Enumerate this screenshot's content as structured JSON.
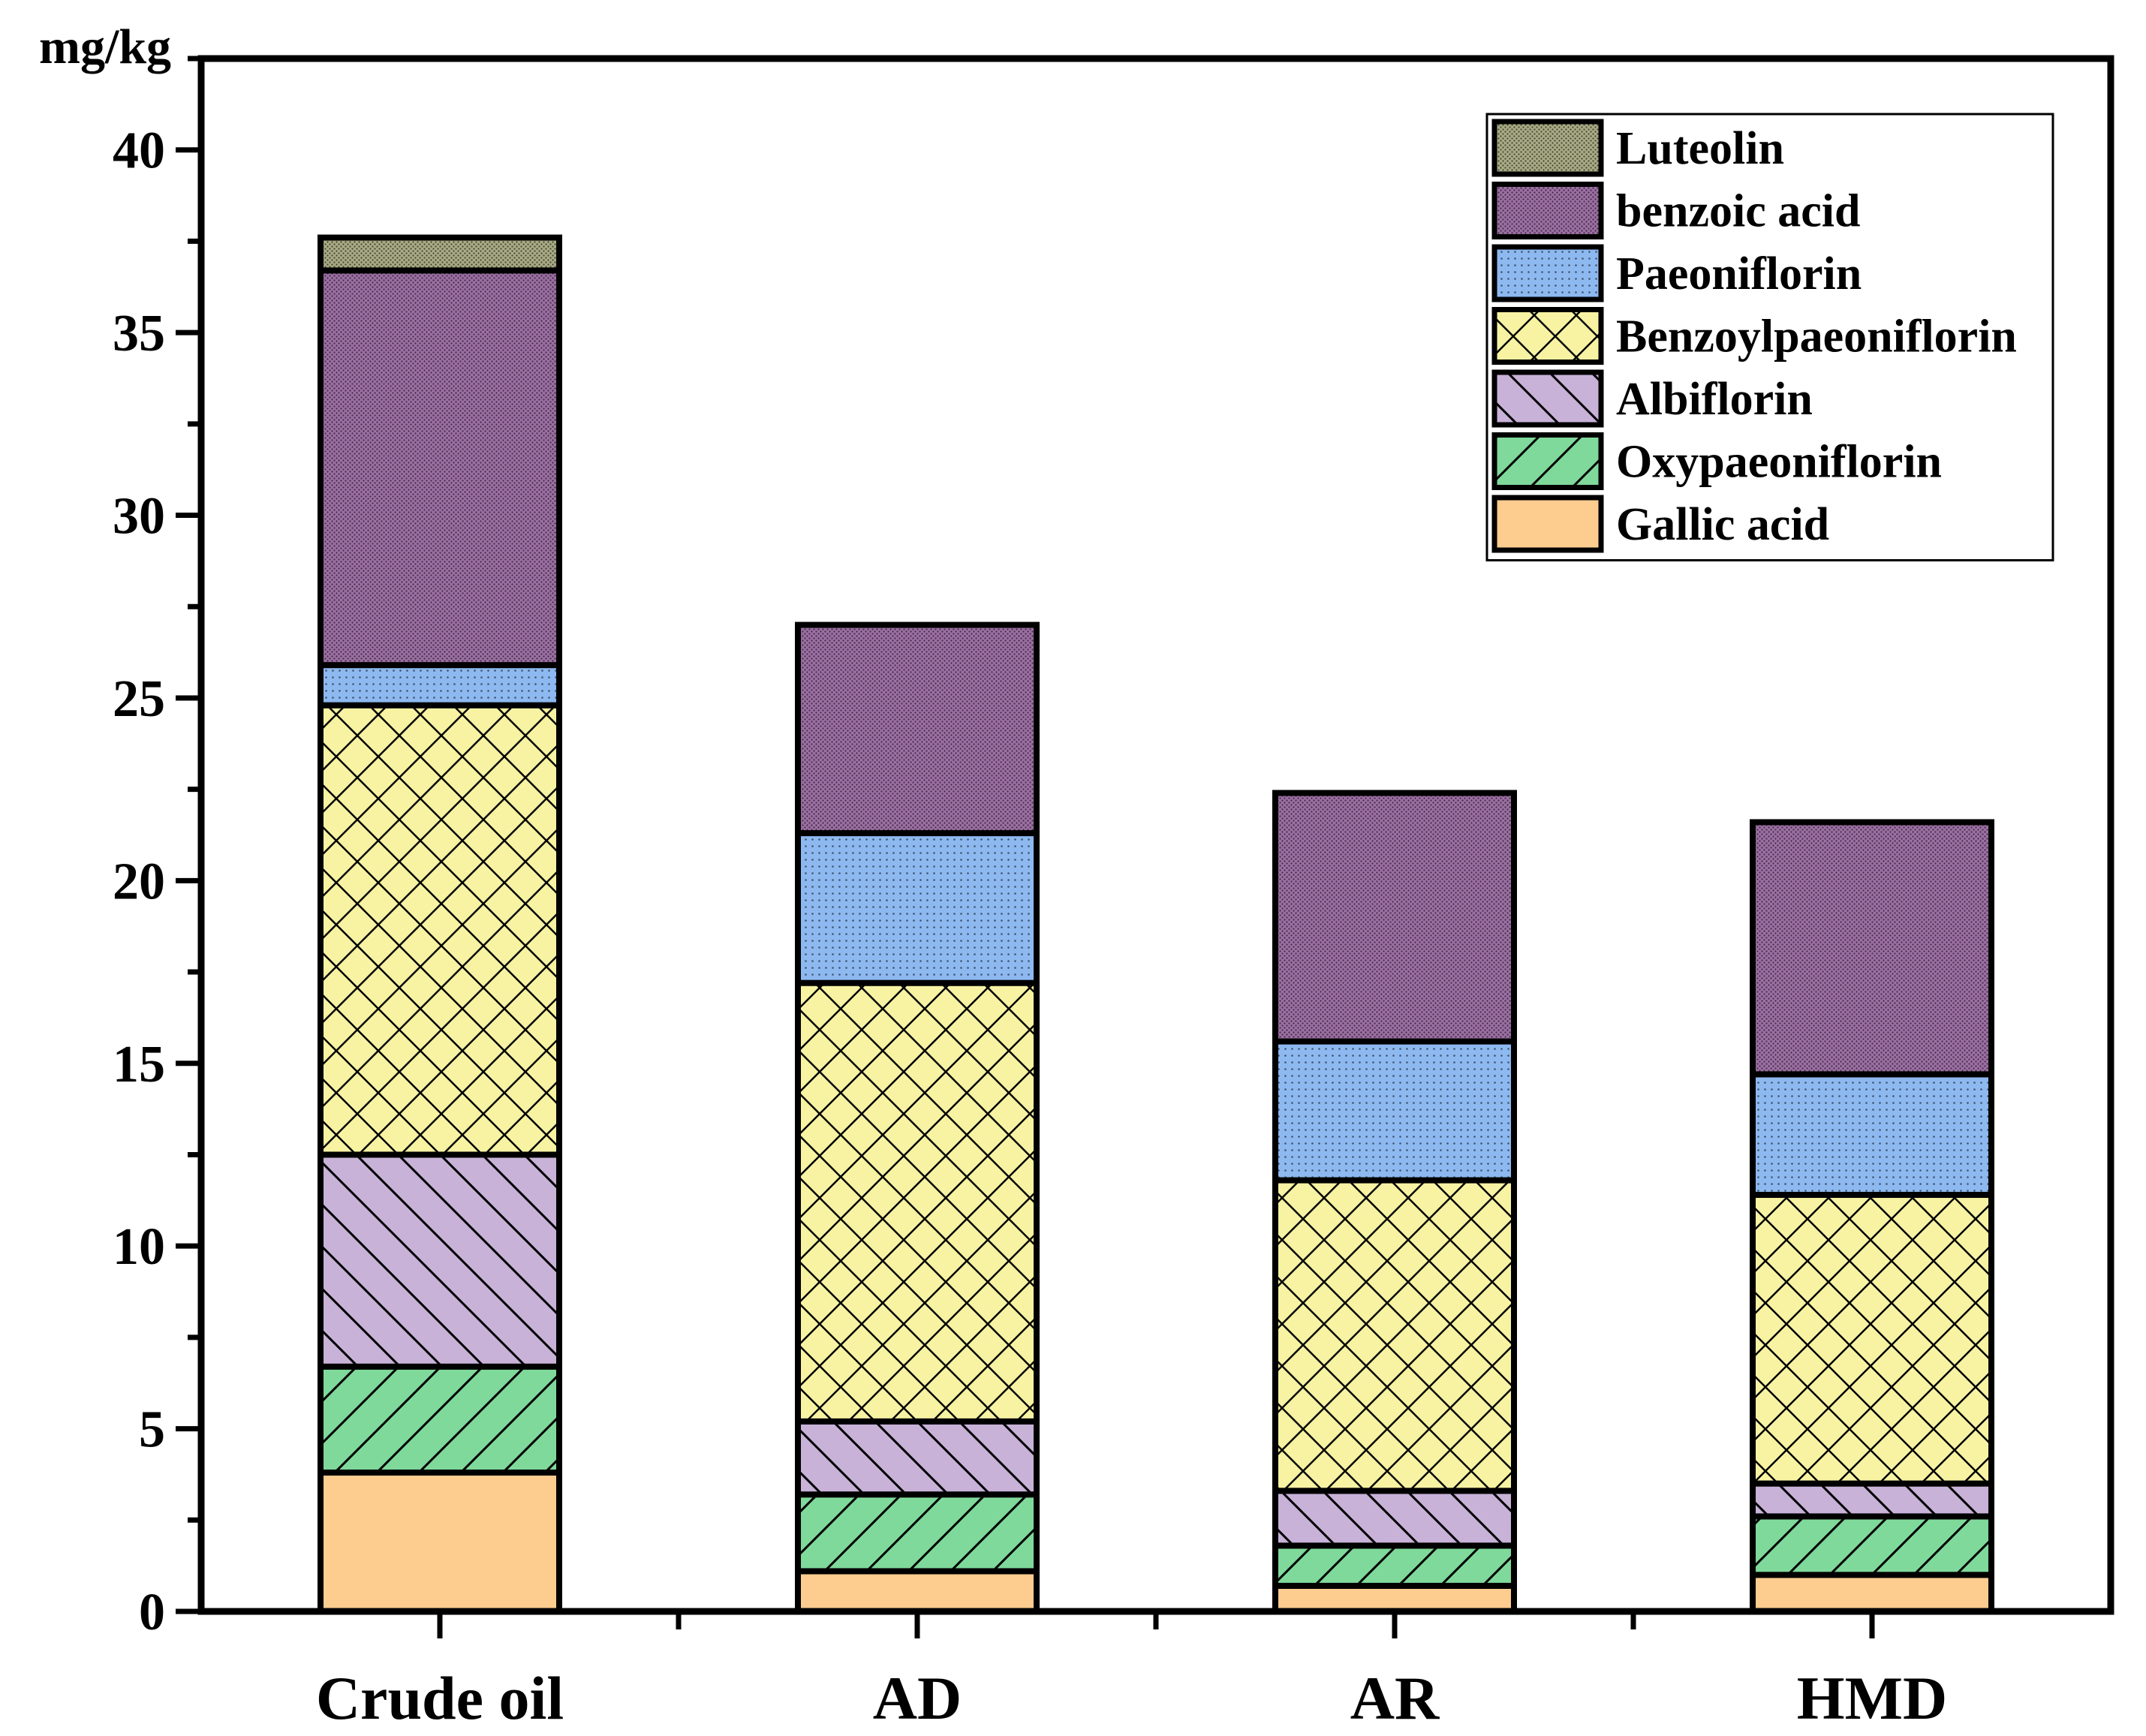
{
  "chart_data": {
    "type": "bar",
    "stacked": true,
    "title": "",
    "xlabel": "",
    "ylabel": "mg/kg",
    "ylim": [
      0,
      42.5
    ],
    "yticks": [
      0,
      5,
      10,
      15,
      20,
      25,
      30,
      35,
      40
    ],
    "minor_ticks": true,
    "grid": false,
    "legend_position": "top-right",
    "categories": [
      "Crude oil",
      "AD",
      "AR",
      "HMD"
    ],
    "series": [
      {
        "name": "Gallic acid",
        "values": [
          3.8,
          1.1,
          0.7,
          1.0
        ],
        "color": "#fdcc8f",
        "pattern": "solid"
      },
      {
        "name": "Oxypaeoniflorin",
        "values": [
          2.9,
          2.1,
          1.1,
          1.6
        ],
        "color": "#7fd99a",
        "pattern": "diag-forward"
      },
      {
        "name": "Albiflorin",
        "values": [
          5.8,
          2.0,
          1.5,
          0.9
        ],
        "color": "#c8b2d8",
        "pattern": "diag-backward"
      },
      {
        "name": "Benzoylpaeoniflorin",
        "values": [
          12.3,
          12.0,
          8.5,
          7.9
        ],
        "color": "#f7f3a3",
        "pattern": "crosshatch"
      },
      {
        "name": "Paeoniflorin",
        "values": [
          1.1,
          4.1,
          3.8,
          3.3
        ],
        "color": "#8db9f0",
        "pattern": "dots"
      },
      {
        "name": "benzoic acid",
        "values": [
          10.8,
          5.7,
          6.8,
          6.9
        ],
        "color": "#9c6fa3",
        "pattern": "dense-dots"
      },
      {
        "name": "Luteolin",
        "values": [
          0.9,
          0,
          0,
          0
        ],
        "color": "#a8ab83",
        "pattern": "dense-dots"
      }
    ]
  }
}
